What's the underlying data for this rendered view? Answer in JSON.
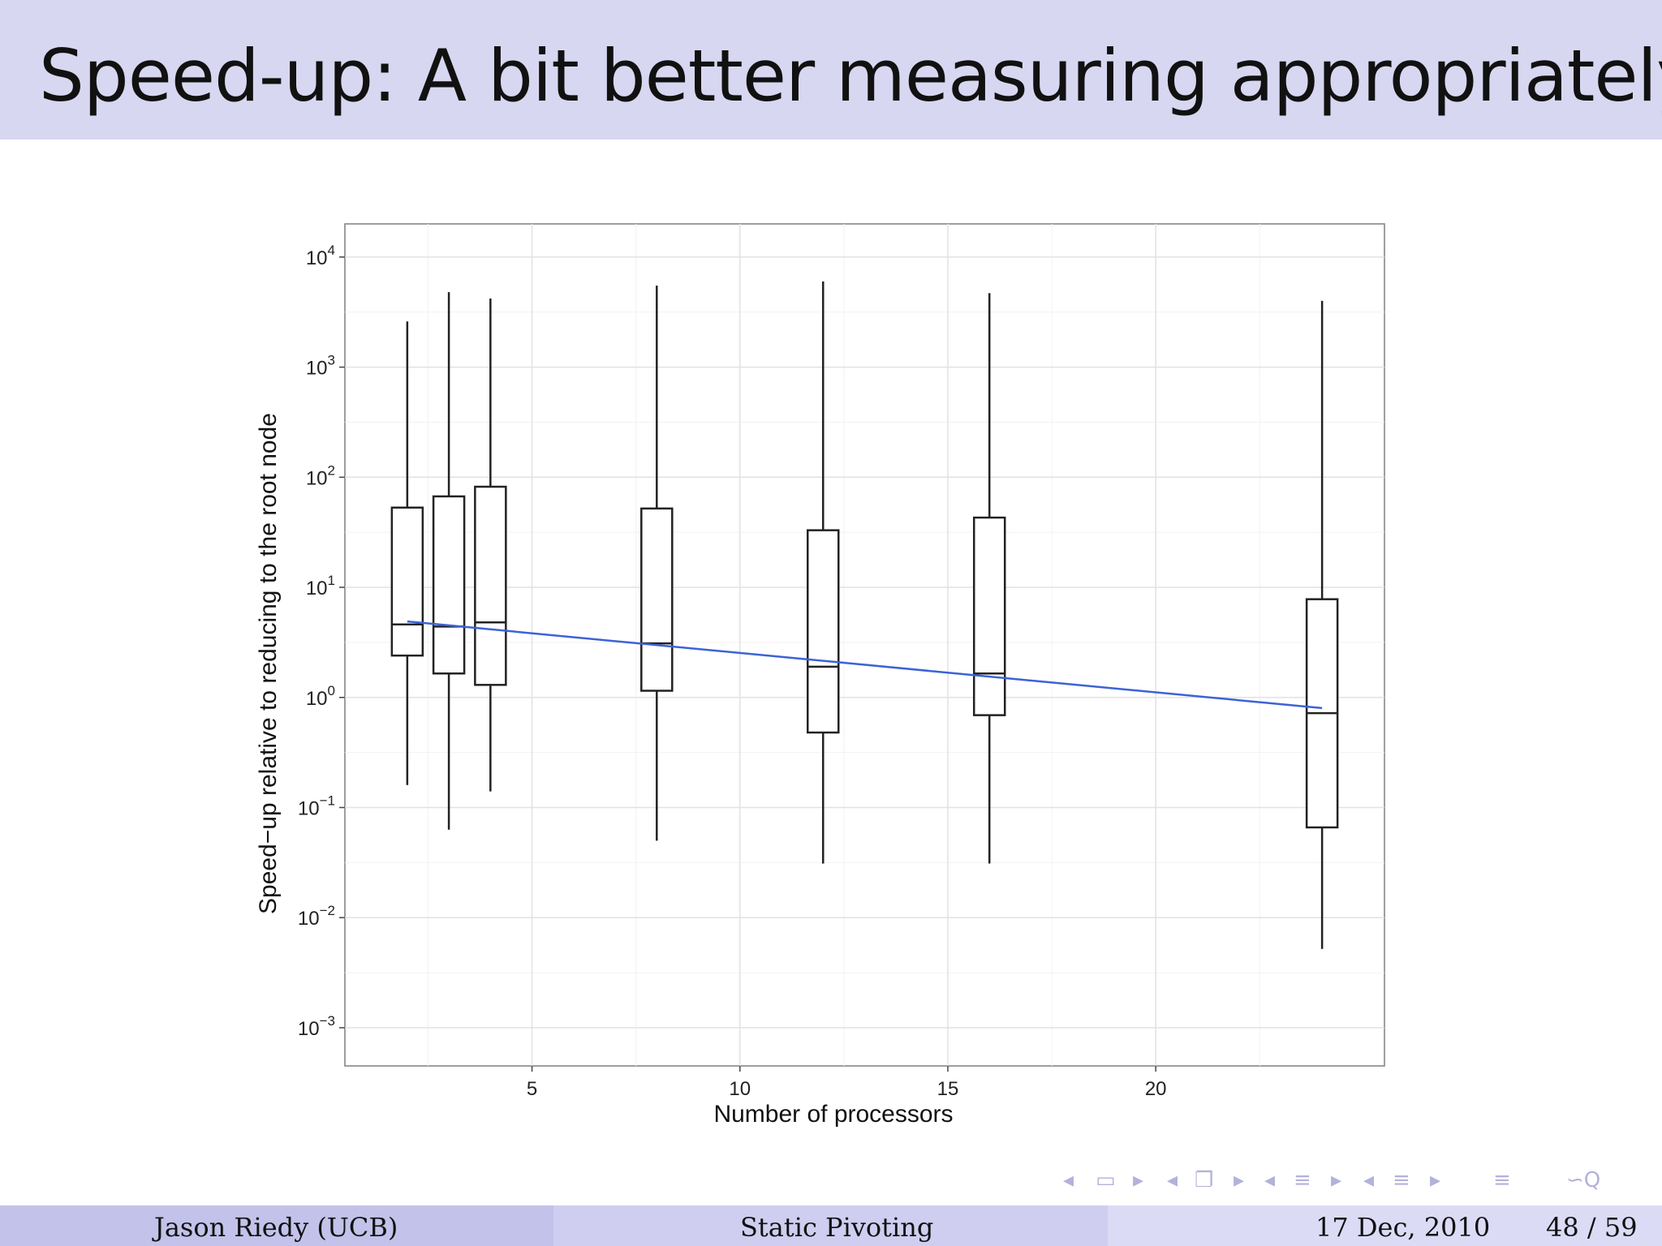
{
  "slide": {
    "title": "Speed-up: A bit better measuring appropriately"
  },
  "chart_data": {
    "type": "box",
    "xlabel": "Number of processors",
    "ylabel": "Speed−up relative to reducing to the root node",
    "x_ticks": [
      5,
      10,
      15,
      20
    ],
    "xlim": [
      0.5,
      25.5
    ],
    "y_scale": "log10",
    "y_ticks": [
      {
        "exp": 4,
        "base": "10",
        "sup": "4"
      },
      {
        "exp": 3,
        "base": "10",
        "sup": "3"
      },
      {
        "exp": 2,
        "base": "10",
        "sup": "2"
      },
      {
        "exp": 1,
        "base": "10",
        "sup": "1"
      },
      {
        "exp": 0,
        "base": "10",
        "sup": "0"
      },
      {
        "exp": -1,
        "base": "10",
        "sup": "−1"
      },
      {
        "exp": -2,
        "base": "10",
        "sup": "−2"
      },
      {
        "exp": -3,
        "base": "10",
        "sup": "−3"
      }
    ],
    "ylim": [
      0.00045,
      20000
    ],
    "grid": true,
    "boxes": [
      {
        "x": 2,
        "min": 0.16,
        "q1": 2.4,
        "median": 4.6,
        "q3": 53,
        "max": 2600
      },
      {
        "x": 3,
        "min": 0.063,
        "q1": 1.65,
        "median": 4.4,
        "q3": 67,
        "max": 4800
      },
      {
        "x": 4,
        "min": 0.14,
        "q1": 1.3,
        "median": 4.8,
        "q3": 82,
        "max": 4200
      },
      {
        "x": 8,
        "min": 0.05,
        "q1": 1.15,
        "median": 3.1,
        "q3": 52,
        "max": 5500
      },
      {
        "x": 12,
        "min": 0.031,
        "q1": 0.48,
        "median": 1.9,
        "q3": 33,
        "max": 6000
      },
      {
        "x": 16,
        "min": 0.031,
        "q1": 0.69,
        "median": 1.65,
        "q3": 43,
        "max": 4700
      },
      {
        "x": 24,
        "min": 0.0052,
        "q1": 0.066,
        "median": 0.72,
        "q3": 7.8,
        "max": 4000
      }
    ],
    "trend": {
      "x": [
        2,
        24
      ],
      "y": [
        4.9,
        0.8
      ],
      "color": "#3b63d6"
    }
  },
  "nav": {
    "icons": [
      "nav-prev-frame-icon",
      "nav-frame-icon",
      "nav-next-frame-icon",
      "nav-prev-subsection-icon",
      "nav-subsection-icon",
      "nav-next-subsection-icon",
      "nav-prev-section-icon",
      "nav-section-icon",
      "nav-next-section-icon",
      "nav-prev-doc-icon",
      "nav-doc-icon",
      "nav-next-doc-icon",
      "nav-toc-icon",
      "nav-search-icon"
    ]
  },
  "footer": {
    "author": "Jason Riedy  (UCB)",
    "talk_title": "Static Pivoting",
    "date": "17 Dec, 2010",
    "page": "48 / 59"
  }
}
